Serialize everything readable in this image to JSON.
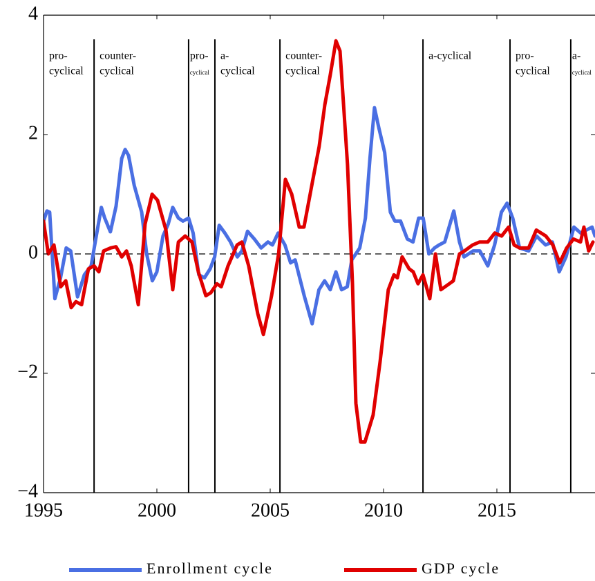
{
  "chart_data": {
    "type": "line",
    "xlim": [
      1995,
      2019.33
    ],
    "ylim": [
      -4,
      4
    ],
    "xticks": [
      1995,
      2000,
      2005,
      2010,
      2015
    ],
    "yticks": [
      {
        "value": -4,
        "label": "−4"
      },
      {
        "value": -2,
        "label": "−2"
      },
      0,
      2,
      4
    ],
    "zero_line": true,
    "regime_breaks": [
      1997.23,
      2001.4,
      2002.56,
      2005.43,
      2011.74,
      2015.58,
      2018.26
    ],
    "regime_labels": [
      [
        "pro-",
        "cyclical"
      ],
      [
        "counter-",
        "cyclical"
      ],
      [
        "pro-",
        "cyclical"
      ],
      [
        "a-",
        "cyclical"
      ],
      [
        "counter-",
        "cyclical"
      ],
      [
        "a-cyclical"
      ],
      [
        "pro-",
        "cyclical"
      ],
      [
        "a-",
        "cyclical"
      ]
    ],
    "series": [
      {
        "name": "Enrollment cycle",
        "color": "#4a6fe3",
        "x": [
          1995.0,
          1995.15,
          1995.27,
          1995.5,
          1995.75,
          1996.0,
          1996.2,
          1996.5,
          1996.8,
          1997.1,
          1997.35,
          1997.55,
          1997.7,
          1997.95,
          1998.2,
          1998.45,
          1998.6,
          1998.75,
          1999.0,
          1999.33,
          1999.55,
          1999.8,
          2000.0,
          2000.27,
          2000.5,
          2000.7,
          2000.95,
          2001.15,
          2001.4,
          2001.6,
          2001.85,
          2002.1,
          2002.35,
          2002.55,
          2002.75,
          2003.0,
          2003.25,
          2003.55,
          2003.75,
          2004.0,
          2004.3,
          2004.6,
          2004.9,
          2005.1,
          2005.35,
          2005.65,
          2005.9,
          2006.1,
          2006.5,
          2006.85,
          2007.15,
          2007.4,
          2007.65,
          2007.9,
          2008.15,
          2008.4,
          2008.6,
          2008.95,
          2009.2,
          2009.4,
          2009.6,
          2009.8,
          2010.05,
          2010.3,
          2010.5,
          2010.75,
          2011.05,
          2011.3,
          2011.55,
          2011.75,
          2012.0,
          2012.25,
          2012.45,
          2012.7,
          2013.1,
          2013.35,
          2013.55,
          2013.95,
          2014.25,
          2014.6,
          2014.9,
          2015.2,
          2015.45,
          2015.7,
          2016.0,
          2016.4,
          2016.75,
          2017.15,
          2017.45,
          2017.75,
          2018.05,
          2018.4,
          2018.7,
          2018.95,
          2019.2,
          2019.33
        ],
        "values": [
          0.55,
          0.72,
          0.7,
          -0.75,
          -0.4,
          0.1,
          0.05,
          -0.72,
          -0.35,
          -0.2,
          0.35,
          0.78,
          0.6,
          0.37,
          0.8,
          1.6,
          1.75,
          1.65,
          1.15,
          0.7,
          0.0,
          -0.45,
          -0.3,
          0.3,
          0.5,
          0.78,
          0.6,
          0.55,
          0.6,
          0.35,
          -0.35,
          -0.4,
          -0.25,
          -0.05,
          0.48,
          0.35,
          0.2,
          -0.05,
          0.05,
          0.38,
          0.25,
          0.1,
          0.2,
          0.15,
          0.35,
          0.15,
          -0.15,
          -0.1,
          -0.7,
          -1.17,
          -0.6,
          -0.45,
          -0.6,
          -0.3,
          -0.6,
          -0.55,
          -0.1,
          0.1,
          0.6,
          1.6,
          2.45,
          2.1,
          1.7,
          0.7,
          0.55,
          0.55,
          0.25,
          0.2,
          0.6,
          0.6,
          0.0,
          0.1,
          0.15,
          0.2,
          0.72,
          0.2,
          -0.05,
          0.05,
          0.05,
          -0.2,
          0.15,
          0.7,
          0.85,
          0.6,
          0.1,
          0.05,
          0.3,
          0.15,
          0.2,
          -0.3,
          -0.05,
          0.45,
          0.35,
          0.4,
          0.45,
          0.3
        ]
      },
      {
        "name": "GDP cycle",
        "color": "#e00000",
        "x": [
          1995.0,
          1995.21,
          1995.46,
          1995.76,
          1995.98,
          1996.22,
          1996.43,
          1996.68,
          1996.98,
          1997.23,
          1997.44,
          1997.65,
          1997.96,
          1998.2,
          1998.45,
          1998.66,
          1998.87,
          1999.18,
          1999.48,
          1999.79,
          2000.03,
          2000.4,
          2000.7,
          2000.95,
          2001.25,
          2001.55,
          2001.83,
          2002.16,
          2002.38,
          2002.65,
          2002.84,
          2003.14,
          2003.54,
          2003.75,
          2004.05,
          2004.45,
          2004.7,
          2005.06,
          2005.37,
          2005.67,
          2005.95,
          2006.28,
          2006.49,
          2006.86,
          2007.16,
          2007.41,
          2007.65,
          2007.9,
          2008.08,
          2008.41,
          2008.63,
          2008.78,
          2008.99,
          2009.18,
          2009.54,
          2009.85,
          2010.21,
          2010.46,
          2010.61,
          2010.82,
          2011.13,
          2011.31,
          2011.52,
          2011.74,
          2012.04,
          2012.29,
          2012.53,
          2012.9,
          2013.08,
          2013.35,
          2013.57,
          2013.93,
          2014.24,
          2014.6,
          2014.91,
          2015.21,
          2015.52,
          2015.76,
          2016.0,
          2016.4,
          2016.74,
          2017.16,
          2017.47,
          2017.77,
          2018.08,
          2018.38,
          2018.69,
          2018.84,
          2019.05,
          2019.24
        ],
        "values": [
          0.55,
          0.0,
          0.15,
          -0.55,
          -0.45,
          -0.9,
          -0.8,
          -0.85,
          -0.25,
          -0.2,
          -0.3,
          0.05,
          0.1,
          0.12,
          -0.05,
          0.05,
          -0.2,
          -0.85,
          0.5,
          1.0,
          0.9,
          0.4,
          -0.6,
          0.2,
          0.3,
          0.2,
          -0.3,
          -0.7,
          -0.65,
          -0.5,
          -0.55,
          -0.2,
          0.15,
          0.2,
          -0.2,
          -1.0,
          -1.35,
          -0.7,
          0.0,
          1.25,
          1.0,
          0.45,
          0.45,
          1.2,
          1.8,
          2.5,
          3.0,
          3.57,
          3.4,
          1.5,
          -0.5,
          -2.5,
          -3.15,
          -3.15,
          -2.7,
          -1.8,
          -0.6,
          -0.35,
          -0.4,
          -0.05,
          -0.25,
          -0.3,
          -0.5,
          -0.35,
          -0.75,
          0.0,
          -0.6,
          -0.5,
          -0.45,
          0.0,
          0.05,
          0.15,
          0.2,
          0.2,
          0.35,
          0.3,
          0.45,
          0.15,
          0.1,
          0.1,
          0.4,
          0.3,
          0.15,
          -0.15,
          0.1,
          0.25,
          0.2,
          0.45,
          0.05,
          0.2
        ]
      }
    ]
  }
}
